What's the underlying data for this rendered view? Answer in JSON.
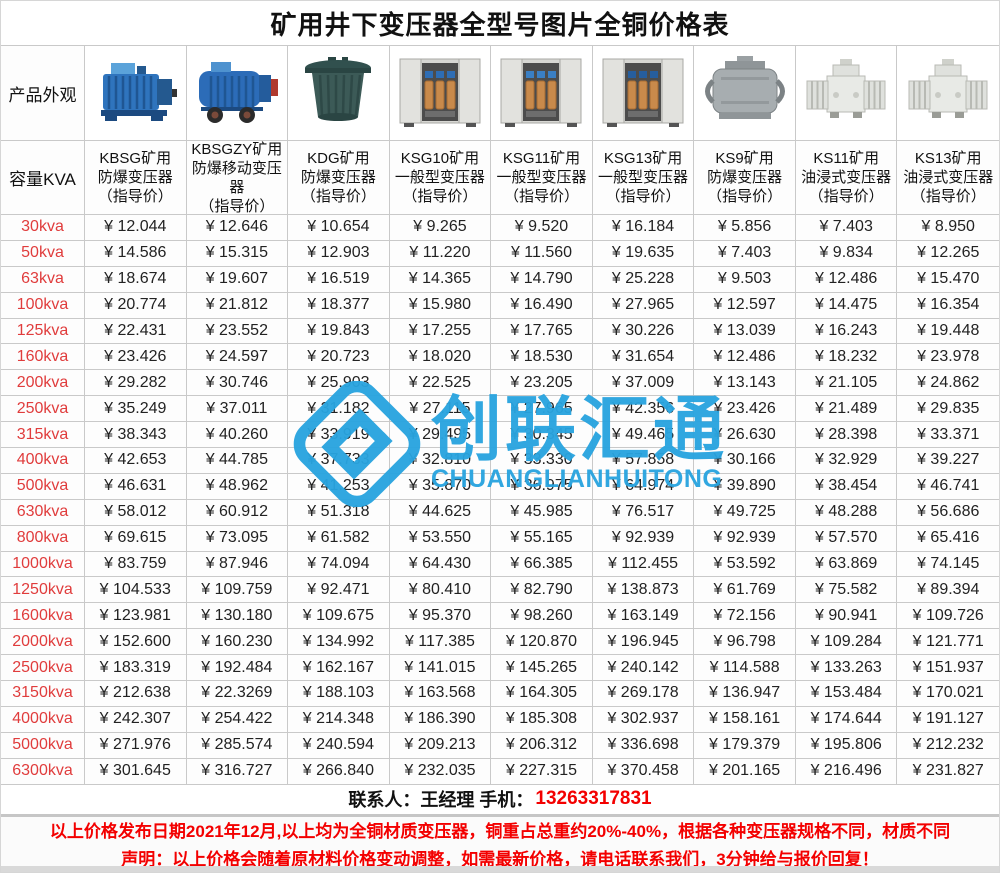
{
  "title": "矿用井下变压器全型号图片全铜价格表",
  "corner_labels": {
    "appearance": "产品外观",
    "capacity": "容量KVA"
  },
  "products": [
    {
      "image": "kbsg",
      "name_lines": [
        "KBSG矿用",
        "防爆变压器",
        "（指导价）"
      ]
    },
    {
      "image": "kbsgzy",
      "name_lines": [
        "KBSGZY矿用",
        "防爆移动变压器",
        "（指导价）"
      ]
    },
    {
      "image": "kdg",
      "name_lines": [
        "KDG矿用",
        "防爆变压器",
        "（指导价）"
      ]
    },
    {
      "image": "ksg10",
      "name_lines": [
        "KSG10矿用",
        "一般型变压器",
        "（指导价）"
      ]
    },
    {
      "image": "ksg11",
      "name_lines": [
        "KSG11矿用",
        "一般型变压器",
        "（指导价）"
      ]
    },
    {
      "image": "ksg13",
      "name_lines": [
        "KSG13矿用",
        "一般型变压器",
        "（指导价）"
      ]
    },
    {
      "image": "ks9",
      "name_lines": [
        "KS9矿用",
        "防爆变压器",
        "（指导价）"
      ]
    },
    {
      "image": "ks11",
      "name_lines": [
        "KS11矿用",
        "油浸式变压器",
        "（指导价）"
      ]
    },
    {
      "image": "ks13",
      "name_lines": [
        "KS13矿用",
        "油浸式变压器",
        "（指导价）"
      ]
    }
  ],
  "price_rows": [
    {
      "capacity": "30kva",
      "prices": [
        "¥ 12.044",
        "¥ 12.646",
        "¥ 10.654",
        "¥ 9.265",
        "¥ 9.520",
        "¥ 16.184",
        "¥ 5.856",
        "¥ 7.403",
        "¥ 8.950"
      ]
    },
    {
      "capacity": "50kva",
      "prices": [
        "¥ 14.586",
        "¥ 15.315",
        "¥ 12.903",
        "¥ 11.220",
        "¥ 11.560",
        "¥ 19.635",
        "¥ 7.403",
        "¥ 9.834",
        "¥ 12.265"
      ]
    },
    {
      "capacity": "63kva",
      "prices": [
        "¥ 18.674",
        "¥ 19.607",
        "¥ 16.519",
        "¥ 14.365",
        "¥ 14.790",
        "¥ 25.228",
        "¥ 9.503",
        "¥ 12.486",
        "¥ 15.470"
      ]
    },
    {
      "capacity": "100kva",
      "prices": [
        "¥ 20.774",
        "¥ 21.812",
        "¥ 18.377",
        "¥ 15.980",
        "¥ 16.490",
        "¥ 27.965",
        "¥ 12.597",
        "¥ 14.475",
        "¥ 16.354"
      ]
    },
    {
      "capacity": "125kva",
      "prices": [
        "¥ 22.431",
        "¥ 23.552",
        "¥ 19.843",
        "¥ 17.255",
        "¥ 17.765",
        "¥ 30.226",
        "¥ 13.039",
        "¥ 16.243",
        "¥ 19.448"
      ]
    },
    {
      "capacity": "160kva",
      "prices": [
        "¥ 23.426",
        "¥ 24.597",
        "¥ 20.723",
        "¥ 18.020",
        "¥ 18.530",
        "¥ 31.654",
        "¥ 12.486",
        "¥ 18.232",
        "¥ 23.978"
      ]
    },
    {
      "capacity": "200kva",
      "prices": [
        "¥ 29.282",
        "¥ 30.746",
        "¥ 25.903",
        "¥ 22.525",
        "¥ 23.205",
        "¥ 37.009",
        "¥ 13.143",
        "¥ 21.105",
        "¥ 24.862"
      ]
    },
    {
      "capacity": "250kva",
      "prices": [
        "¥ 35.249",
        "¥ 37.011",
        "¥ 31.182",
        "¥ 27.115",
        "¥ 27.965",
        "¥ 42.356",
        "¥ 23.426",
        "¥ 21.489",
        "¥ 29.835"
      ]
    },
    {
      "capacity": "315kva",
      "prices": [
        "¥ 38.343",
        "¥ 40.260",
        "¥ 33.919",
        "¥ 29.495",
        "¥ 30.345",
        "¥ 49.465",
        "¥ 26.630",
        "¥ 28.398",
        "¥ 33.371"
      ]
    },
    {
      "capacity": "400kva",
      "prices": [
        "¥ 42.653",
        "¥ 44.785",
        "¥ 37.733",
        "¥ 32.810",
        "¥ 33.330",
        "¥ 57.858",
        "¥ 30.166",
        "¥ 32.929",
        "¥ 39.227"
      ]
    },
    {
      "capacity": "500kva",
      "prices": [
        "¥ 46.631",
        "¥ 48.962",
        "¥ 41.253",
        "¥ 35.870",
        "¥ 36.975",
        "¥ 64.974",
        "¥ 39.890",
        "¥ 38.454",
        "¥ 46.741"
      ]
    },
    {
      "capacity": "630kva",
      "prices": [
        "¥ 58.012",
        "¥ 60.912",
        "¥ 51.318",
        "¥ 44.625",
        "¥ 45.985",
        "¥ 76.517",
        "¥ 49.725",
        "¥ 48.288",
        "¥ 56.686"
      ]
    },
    {
      "capacity": "800kva",
      "prices": [
        "¥ 69.615",
        "¥ 73.095",
        "¥ 61.582",
        "¥ 53.550",
        "¥ 55.165",
        "¥ 92.939",
        "¥ 92.939",
        "¥ 57.570",
        "¥ 65.416"
      ]
    },
    {
      "capacity": "1000kva",
      "prices": [
        "¥ 83.759",
        "¥ 87.946",
        "¥ 74.094",
        "¥ 64.430",
        "¥ 66.385",
        "¥ 112.455",
        "¥ 53.592",
        "¥ 63.869",
        "¥ 74.145"
      ]
    },
    {
      "capacity": "1250kva",
      "prices": [
        "¥ 104.533",
        "¥ 109.759",
        "¥ 92.471",
        "¥ 80.410",
        "¥ 82.790",
        "¥ 138.873",
        "¥ 61.769",
        "¥ 75.582",
        "¥ 89.394"
      ]
    },
    {
      "capacity": "1600kva",
      "prices": [
        "¥ 123.981",
        "¥ 130.180",
        "¥ 109.675",
        "¥ 95.370",
        "¥ 98.260",
        "¥ 163.149",
        "¥ 72.156",
        "¥ 90.941",
        "¥ 109.726"
      ]
    },
    {
      "capacity": "2000kva",
      "prices": [
        "¥ 152.600",
        "¥ 160.230",
        "¥ 134.992",
        "¥ 117.385",
        "¥ 120.870",
        "¥ 196.945",
        "¥ 96.798",
        "¥ 109.284",
        "¥ 121.771"
      ]
    },
    {
      "capacity": "2500kva",
      "prices": [
        "¥ 183.319",
        "¥ 192.484",
        "¥ 162.167",
        "¥ 141.015",
        "¥ 145.265",
        "¥ 240.142",
        "¥ 114.588",
        "¥ 133.263",
        "¥ 151.937"
      ]
    },
    {
      "capacity": "3150kva",
      "prices": [
        "¥ 212.638",
        "¥ 22.3269",
        "¥ 188.103",
        "¥ 163.568",
        "¥ 164.305",
        "¥ 269.178",
        "¥ 136.947",
        "¥ 153.484",
        "¥ 170.021"
      ]
    },
    {
      "capacity": "4000kva",
      "prices": [
        "¥ 242.307",
        "¥ 254.422",
        "¥ 214.348",
        "¥ 186.390",
        "¥ 185.308",
        "¥ 302.937",
        "¥ 158.161",
        "¥ 174.644",
        "¥ 191.127"
      ]
    },
    {
      "capacity": "5000kva",
      "prices": [
        "¥ 271.976",
        "¥ 285.574",
        "¥ 240.594",
        "¥ 209.213",
        "¥ 206.312",
        "¥ 336.698",
        "¥ 179.379",
        "¥ 195.806",
        "¥ 212.232"
      ]
    },
    {
      "capacity": "6300kva",
      "prices": [
        "¥ 301.645",
        "¥ 316.727",
        "¥ 266.840",
        "¥ 232.035",
        "¥ 227.315",
        "¥ 370.458",
        "¥ 201.165",
        "¥ 216.496",
        "¥ 231.827"
      ]
    }
  ],
  "contact": {
    "label": "联系人：王经理  手机：",
    "phone": "13263317831"
  },
  "footer": {
    "line1": "以上价格发布日期2021年12月,以上均为全铜材质变压器，铜重占总重约20%-40%，根据各种变压器规格不同，材质不同",
    "line2": "声明：以上价格会随着原材料价格变动调整，如需最新价格，请电话联系我们，3分钟给与报价回复！"
  },
  "watermark": {
    "text": "创联汇通",
    "subtext": "CHUANGLIANHUITONG"
  },
  "colors": {
    "capacity_red": "#e03c3c",
    "notice_red": "#f30000",
    "watermark_blue": "#29a4df",
    "grid_line": "#c9c9c9"
  }
}
